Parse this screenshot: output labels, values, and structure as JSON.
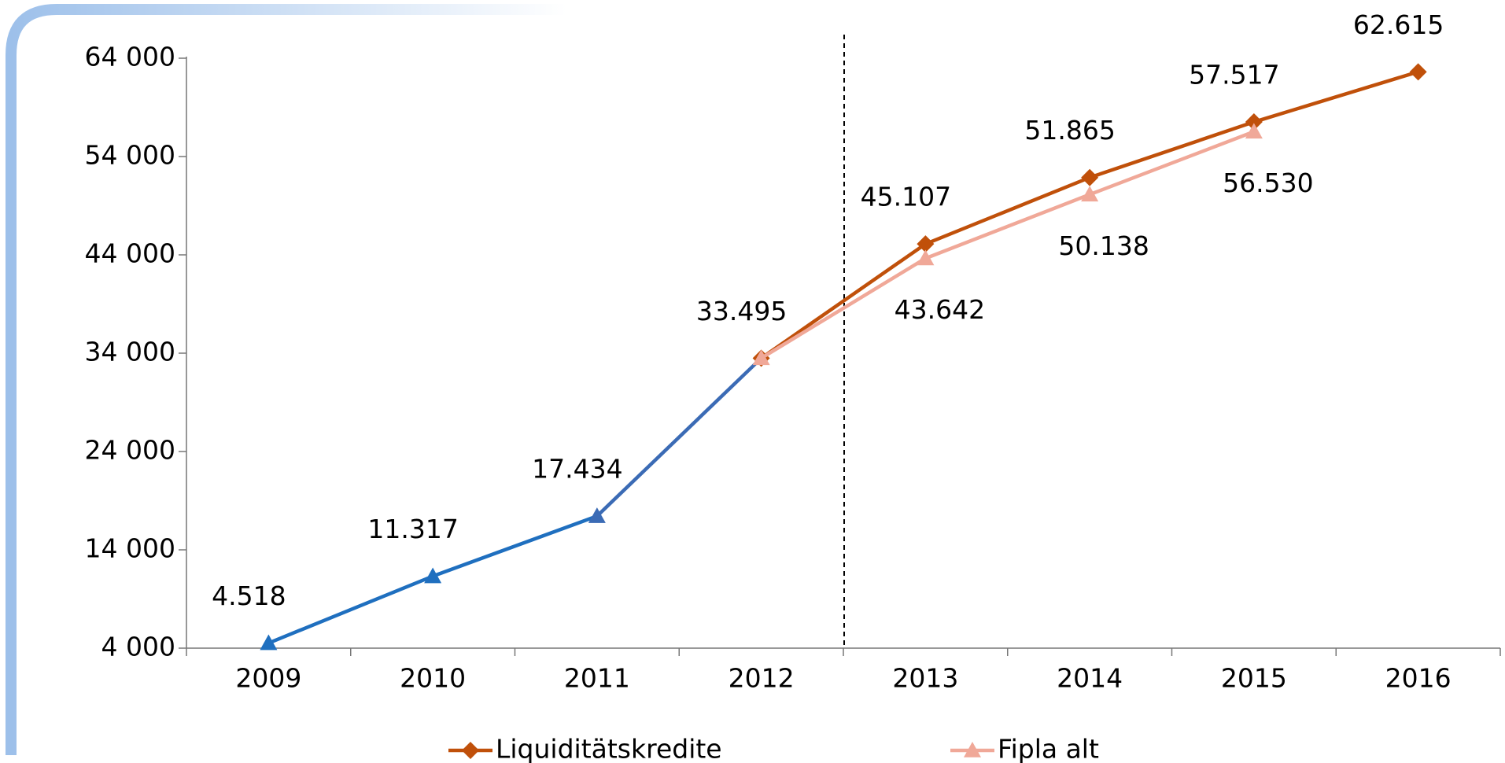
{
  "chart_data": {
    "type": "line",
    "categories": [
      "2009",
      "2010",
      "2011",
      "2012",
      "2013",
      "2014",
      "2015",
      "2016"
    ],
    "series": [
      {
        "name": "Liquiditätskredite",
        "color": "#c0500a",
        "marker": "diamond",
        "point_colors": [
          "#1f6fbf",
          "#1f6fbf",
          "#3b6bb5",
          "#c0500a",
          "#c0500a",
          "#c0500a",
          "#c0500a",
          "#c0500a"
        ],
        "point_markers": [
          "triangle",
          "triangle",
          "triangle",
          "diamond",
          "diamond",
          "diamond",
          "diamond",
          "diamond"
        ],
        "values": [
          4518,
          11317,
          17434,
          33495,
          45107,
          51865,
          57517,
          62615
        ],
        "value_labels": [
          "4.518",
          "11.317",
          "17.434",
          "33.495",
          "45.107",
          "51.865",
          "57.517",
          "62.615"
        ]
      },
      {
        "name": "Fipla alt",
        "color": "#f0a898",
        "marker": "triangle",
        "values": [
          null,
          null,
          null,
          33495,
          43642,
          50138,
          56530,
          null
        ],
        "value_labels": [
          null,
          null,
          null,
          null,
          "43.642",
          "50.138",
          "56.530",
          null
        ]
      }
    ],
    "ylim": [
      4000,
      64000
    ],
    "yticks": [
      {
        "value": 4000,
        "label": "4 000"
      },
      {
        "value": 14000,
        "label": "14 000"
      },
      {
        "value": 24000,
        "label": "24 000"
      },
      {
        "value": 34000,
        "label": "34 000"
      },
      {
        "value": 44000,
        "label": "44 000"
      },
      {
        "value": 54000,
        "label": "54 000"
      },
      {
        "value": 64000,
        "label": "64 000"
      }
    ],
    "grid": false,
    "legend": "bottom"
  }
}
